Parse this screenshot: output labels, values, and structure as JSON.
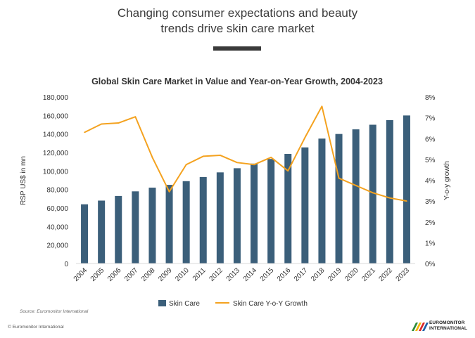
{
  "header": {
    "title_line1": "Changing consumer expectations and beauty",
    "title_line2": "trends drive skin care market"
  },
  "footer": {
    "source": "Source: Euromonitor International",
    "copyright": "© Euromonitor International",
    "logo_line1": "EUROMONITOR",
    "logo_line2": "INTERNATIONAL"
  },
  "colors": {
    "bar": "#3b5f7a",
    "line": "#f4a21f",
    "axis": "#d9d9d9",
    "text": "#333333"
  },
  "chart_data": {
    "type": "bar",
    "title": "Global Skin Care Market in Value and Year-on-Year Growth, 2004-2023",
    "xlabel": "",
    "ylabel": "RSP US$ in mn",
    "y2label": "Y-o-y growth",
    "ylim": [
      0,
      180000
    ],
    "y2lim": [
      0,
      0.08
    ],
    "yticks": [
      "0",
      "20,000",
      "40,000",
      "60,000",
      "80,000",
      "100,000",
      "120,000",
      "140,000",
      "160,000",
      "180,000"
    ],
    "y2ticks": [
      "0%",
      "1%",
      "2%",
      "3%",
      "4%",
      "5%",
      "6%",
      "7%",
      "8%"
    ],
    "grid": false,
    "legend_position": "bottom",
    "categories": [
      "2004",
      "2005",
      "2006",
      "2007",
      "2008",
      "2009",
      "2010",
      "2011",
      "2012",
      "2013",
      "2014",
      "2015",
      "2016",
      "2017",
      "2018",
      "2019",
      "2020",
      "2021",
      "2022",
      "2023"
    ],
    "series": [
      {
        "name": "Skin Care",
        "type": "bar",
        "axis": "left",
        "values": [
          64000,
          68000,
          73000,
          78000,
          82000,
          85000,
          89000,
          93500,
          98500,
          103000,
          108000,
          113000,
          118500,
          125500,
          135000,
          140000,
          145000,
          150000,
          155000,
          160000
        ]
      },
      {
        "name": "Skin Care Y-o-Y Growth",
        "type": "line",
        "axis": "right",
        "values": [
          0.063,
          0.067,
          0.0675,
          0.0705,
          0.051,
          0.0345,
          0.0475,
          0.0515,
          0.052,
          0.0485,
          0.0475,
          0.051,
          0.0445,
          0.0605,
          0.0755,
          0.041,
          0.0375,
          0.034,
          0.0315,
          0.03
        ]
      }
    ]
  }
}
